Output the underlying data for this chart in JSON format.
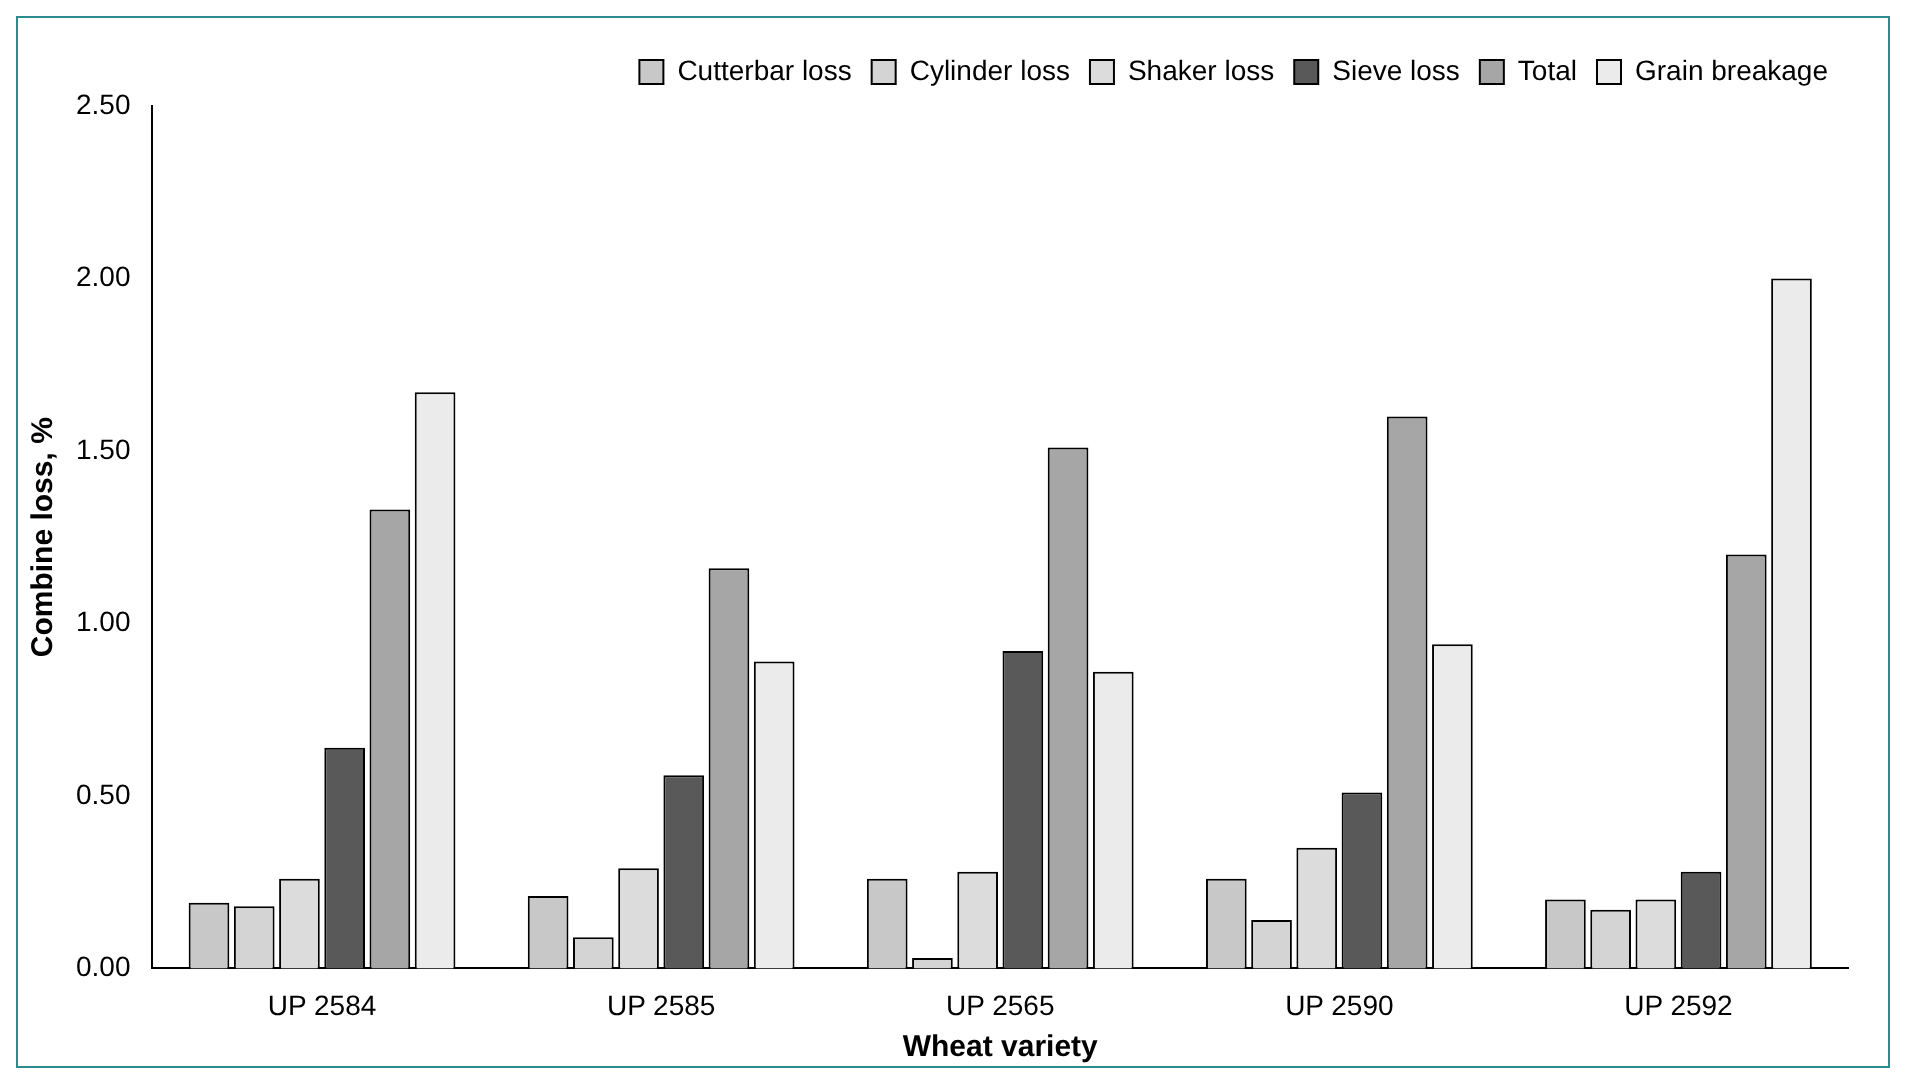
{
  "chart_data": {
    "type": "bar",
    "xlabel": "Wheat variety",
    "ylabel": "Combine loss, %",
    "categories": [
      "UP 2584",
      "UP 2585",
      "UP 2565",
      "UP 2590",
      "UP 2592"
    ],
    "series": [
      {
        "name": "Cutterbar loss",
        "color": "#c8c8c8",
        "values": [
          0.19,
          0.21,
          0.26,
          0.26,
          0.2
        ]
      },
      {
        "name": "Cylinder loss",
        "color": "#d4d4d4",
        "values": [
          0.18,
          0.09,
          0.03,
          0.14,
          0.17
        ]
      },
      {
        "name": "Shaker loss",
        "color": "#dcdcdc",
        "values": [
          0.26,
          0.29,
          0.28,
          0.35,
          0.2
        ]
      },
      {
        "name": "Sieve loss",
        "color": "#595959",
        "values": [
          0.64,
          0.56,
          0.92,
          0.51,
          0.28
        ]
      },
      {
        "name": "Total",
        "color": "#a6a6a6",
        "values": [
          1.33,
          1.16,
          1.51,
          1.6,
          1.2
        ]
      },
      {
        "name": "Grain breakage",
        "color": "#ebebeb",
        "values": [
          1.67,
          0.89,
          0.86,
          0.94,
          2.0
        ]
      }
    ],
    "ylim": [
      0,
      2.5
    ],
    "yticks": [
      {
        "value": 0,
        "label": "0.00"
      },
      {
        "value": 0.5,
        "label": "0.50"
      },
      {
        "value": 1,
        "label": "1.00"
      },
      {
        "value": 1.5,
        "label": "1.50"
      },
      {
        "value": 2,
        "label": "2.00"
      },
      {
        "value": 2.5,
        "label": "2.50"
      }
    ],
    "grid": false,
    "legend": "top right"
  }
}
